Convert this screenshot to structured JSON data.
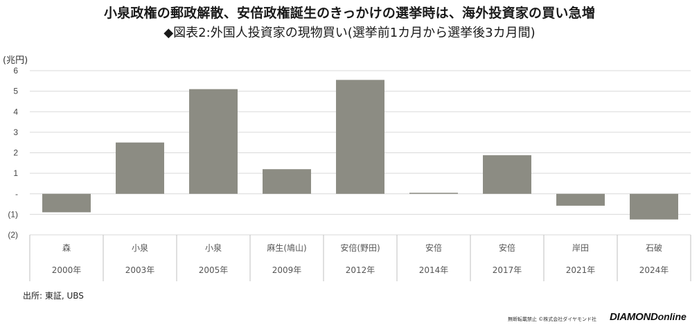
{
  "title": "小泉政権の郵政解散、安倍政権誕生のきっかけの選挙時は、海外投資家の買い急増",
  "subtitle": "◆図表2:外国人投資家の現物買い(選挙前1カ月から選挙後3カ月間)",
  "source": "出所: 東証, UBS",
  "footer_note": "無断転載禁止 ©株式会社ダイヤモンド社",
  "brand": {
    "main": "DIAMOND",
    "sub": "online"
  },
  "colors": {
    "bar": "#8c8c83",
    "grid": "#d9d9d9",
    "axis": "#bfbfbf"
  },
  "chart_data": {
    "type": "bar",
    "title": "◆図表2:外国人投資家の現物買い(選挙前1カ月から選挙後3カ月間)",
    "ylabel": "(兆円)",
    "xlabel": "",
    "ylim": [
      -2,
      6
    ],
    "yticks": [
      {
        "value": 6,
        "label": "6"
      },
      {
        "value": 5,
        "label": "5"
      },
      {
        "value": 4,
        "label": "4"
      },
      {
        "value": 3,
        "label": "3"
      },
      {
        "value": 2,
        "label": "2"
      },
      {
        "value": 1,
        "label": "1"
      },
      {
        "value": 0,
        "label": "-"
      },
      {
        "value": -1,
        "label": "(1)"
      },
      {
        "value": -2,
        "label": "(2)"
      }
    ],
    "grid": true,
    "categories": [
      {
        "name": "森",
        "year": "2000年"
      },
      {
        "name": "小泉",
        "year": "2003年"
      },
      {
        "name": "小泉",
        "year": "2005年"
      },
      {
        "name": "麻生(鳩山)",
        "year": "2009年"
      },
      {
        "name": "安倍(野田)",
        "year": "2012年"
      },
      {
        "name": "安倍",
        "year": "2014年"
      },
      {
        "name": "安倍",
        "year": "2017年"
      },
      {
        "name": "岸田",
        "year": "2021年"
      },
      {
        "name": "石破",
        "year": "2024年"
      }
    ],
    "values": [
      -0.9,
      2.5,
      5.1,
      1.2,
      5.55,
      0.05,
      1.88,
      -0.58,
      -1.25
    ]
  }
}
